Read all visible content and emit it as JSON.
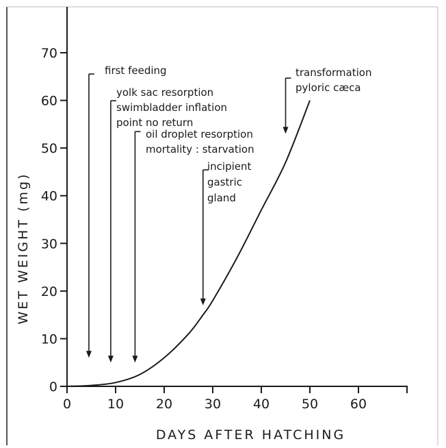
{
  "chart_data": {
    "type": "line",
    "xlabel": "DAYS AFTER HATCHING",
    "ylabel": "WET WEIGHT (mg)",
    "xlim": [
      0,
      70
    ],
    "ylim": [
      0,
      70
    ],
    "x_ticks": [
      0,
      10,
      20,
      30,
      40,
      50,
      60
    ],
    "y_ticks": [
      0,
      10,
      20,
      30,
      40,
      50,
      60,
      70
    ],
    "grid": false,
    "x": [
      0,
      5,
      10,
      15,
      20,
      25,
      28,
      30,
      35,
      40,
      45,
      50
    ],
    "y": [
      0,
      0.2,
      0.8,
      2.5,
      6,
      11,
      15,
      18,
      27,
      37,
      47,
      60
    ],
    "annotations": [
      {
        "lines": [
          "first feeding"
        ],
        "arrow_day": 4.5,
        "arrow_tip": 6
      },
      {
        "lines": [
          "yolk sac resorption",
          "swimbladder inflation",
          "point no return"
        ],
        "arrow_day": 9,
        "arrow_tip": 5
      },
      {
        "lines": [
          "oil droplet resorption",
          "mortality : starvation"
        ],
        "arrow_day": 14,
        "arrow_tip": 5
      },
      {
        "lines": [
          "incipient",
          "gastric",
          "gland"
        ],
        "arrow_day": 28,
        "arrow_tip": 17
      },
      {
        "lines": [
          "transformation",
          "pyloric cæca"
        ],
        "arrow_day": 45,
        "arrow_tip": 53
      }
    ]
  }
}
